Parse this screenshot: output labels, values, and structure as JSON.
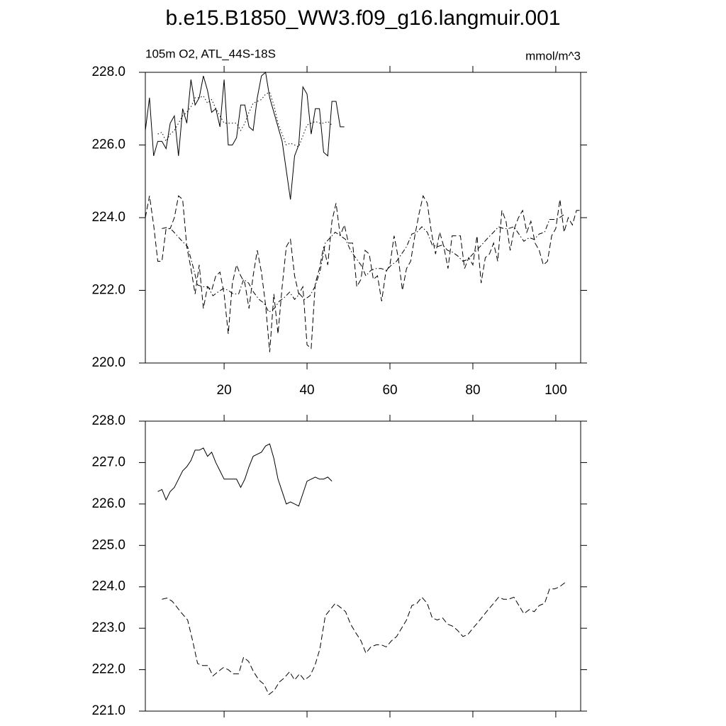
{
  "chart_data": [
    {
      "type": "line",
      "title": "b.e15.B1850_WW3.f09_g16.langmuir.001",
      "subtitle_left": "105m O2, ATL_44S-18S",
      "subtitle_right": "mmol/m^3",
      "xlim": [
        1,
        106
      ],
      "ylim": [
        220,
        228
      ],
      "xticks": [
        20,
        40,
        60,
        80,
        100
      ],
      "yticks": [
        {
          "value": 220,
          "label": "220.0"
        },
        {
          "value": 222,
          "label": "222.0"
        },
        {
          "value": 224,
          "label": "224.0"
        },
        {
          "value": 226,
          "label": "226.0"
        },
        {
          "value": 228,
          "label": "228.0"
        }
      ],
      "series": [
        {
          "color": "#000000",
          "line_style": "solid",
          "x": [
            1,
            2,
            3,
            4,
            5,
            6,
            7,
            8,
            9,
            10,
            11,
            12,
            13,
            14,
            15,
            16,
            17,
            18,
            19,
            20,
            21,
            22,
            23,
            24,
            25,
            26,
            27,
            28,
            29,
            30,
            31,
            32,
            33,
            34,
            35,
            36,
            37,
            38,
            39,
            40,
            41,
            42,
            43,
            44,
            45,
            46,
            47,
            48,
            49
          ],
          "values": [
            226.4,
            227.3,
            225.7,
            226.1,
            226.1,
            225.9,
            226.6,
            226.8,
            225.7,
            227.0,
            226.6,
            227.8,
            227.1,
            227.3,
            227.9,
            227.5,
            226.9,
            227.0,
            226.5,
            227.8,
            226.0,
            226.0,
            226.2,
            227.1,
            227.1,
            226.5,
            226.4,
            227.3,
            227.9,
            228.0,
            227.3,
            226.9,
            226.5,
            226.1,
            225.3,
            224.5,
            225.7,
            226.0,
            227.6,
            227.4,
            226.3,
            227.0,
            227.0,
            225.8,
            225.7,
            227.2,
            227.2,
            226.5,
            226.5
          ]
        },
        {
          "color": "#000000",
          "line_style": "dashed",
          "x": [
            1,
            2,
            3,
            4,
            5,
            6,
            7,
            8,
            9,
            10,
            11,
            12,
            13,
            14,
            15,
            16,
            17,
            18,
            19,
            20,
            21,
            22,
            23,
            24,
            25,
            26,
            27,
            28,
            29,
            30,
            31,
            32,
            33,
            34,
            35,
            36,
            37,
            38,
            39,
            40,
            41,
            42,
            43,
            44,
            45,
            46,
            47,
            48,
            49,
            50,
            51,
            52,
            53,
            54,
            55,
            56,
            57,
            58,
            59,
            60,
            61,
            62,
            63,
            64,
            65,
            66,
            67,
            68,
            69,
            70,
            71,
            72,
            73,
            74,
            75,
            76,
            77,
            78,
            79,
            80,
            81,
            82,
            83,
            84,
            85,
            86,
            87,
            88,
            89,
            90,
            91,
            92,
            93,
            94,
            95,
            96,
            97,
            98,
            99,
            100,
            101,
            102,
            103,
            104,
            105,
            106
          ],
          "values": [
            224.0,
            224.6,
            223.8,
            222.8,
            222.8,
            223.7,
            223.7,
            224.0,
            224.6,
            224.5,
            223.2,
            222.6,
            221.9,
            222.7,
            221.5,
            222.1,
            222.0,
            222.4,
            222.5,
            221.9,
            220.8,
            222.2,
            222.7,
            222.4,
            222.2,
            221.5,
            222.4,
            223.1,
            222.5,
            221.6,
            220.3,
            221.9,
            220.8,
            222.1,
            223.2,
            223.4,
            222.4,
            221.9,
            222.1,
            220.5,
            220.4,
            222.2,
            222.6,
            223.2,
            222.7,
            223.9,
            224.4,
            223.5,
            223.8,
            223.3,
            223.3,
            222.1,
            222.3,
            223.1,
            223.0,
            222.3,
            222.4,
            221.7,
            222.5,
            222.7,
            223.5,
            222.9,
            222.0,
            222.6,
            222.8,
            223.5,
            224.1,
            224.6,
            224.4,
            223.6,
            223.0,
            223.6,
            223.2,
            222.6,
            223.5,
            223.5,
            223.5,
            222.6,
            222.9,
            222.7,
            223.5,
            222.2,
            222.9,
            223.0,
            223.3,
            222.8,
            224.2,
            223.9,
            223.1,
            223.7,
            224.0,
            224.2,
            223.6,
            223.9,
            223.3,
            223.1,
            222.7,
            222.8,
            223.5,
            223.7,
            224.5,
            223.6,
            224.0,
            223.8,
            224.2,
            224.2
          ]
        },
        {
          "color": "#000000",
          "line_style": "dotted",
          "x": [
            4,
            5,
            6,
            7,
            8,
            9,
            10,
            11,
            12,
            13,
            14,
            15,
            16,
            17,
            18,
            19,
            20,
            21,
            22,
            23,
            24,
            25,
            26,
            27,
            28,
            29,
            30,
            31,
            32,
            33,
            34,
            35,
            36,
            37,
            38,
            39,
            40,
            41,
            42,
            43,
            44,
            45,
            46
          ],
          "values": [
            226.3,
            226.35,
            226.1,
            226.3,
            226.4,
            226.6,
            226.8,
            226.9,
            227.05,
            227.3,
            227.3,
            227.35,
            227.15,
            227.25,
            227.0,
            226.8,
            226.6,
            226.6,
            226.6,
            226.6,
            226.4,
            226.6,
            226.9,
            227.15,
            227.2,
            227.25,
            227.4,
            227.45,
            227.1,
            226.6,
            226.3,
            226.0,
            226.05,
            226.0,
            225.95,
            226.25,
            226.55,
            226.6,
            226.65,
            226.6,
            226.6,
            226.65,
            226.55
          ]
        },
        {
          "color": "#000000",
          "line_style": "dashdot",
          "x": [
            5.0,
            6.2,
            7.5,
            8.7,
            9.9,
            11.2,
            12.4,
            13.6,
            14.8,
            16.1,
            17.3,
            18.5,
            19.8,
            21.0,
            22.2,
            23.5,
            24.7,
            25.9,
            27.1,
            28.4,
            29.6,
            30.8,
            32.1,
            33.3,
            34.5,
            35.8,
            37.0,
            38.2,
            39.4,
            40.7,
            41.9,
            43.1,
            44.4,
            45.6,
            46.8,
            48.1,
            49.3,
            50.5,
            51.7,
            53.0,
            54.2,
            55.4,
            56.7,
            57.9,
            59.1,
            60.4,
            61.6,
            62.8,
            64.0,
            65.3,
            66.5,
            67.7,
            69.0,
            70.2,
            71.4,
            72.7,
            73.9,
            75.1,
            76.3,
            77.6,
            78.8,
            80.0,
            81.3,
            82.5,
            83.7,
            85.0,
            86.2,
            87.4,
            88.6,
            89.9,
            91.1,
            92.3,
            93.6,
            94.8,
            96.0,
            97.3,
            98.5,
            99.7,
            100.9,
            102.2
          ],
          "values": [
            223.7,
            223.73,
            223.65,
            223.5,
            223.35,
            223.2,
            222.7,
            222.15,
            222.1,
            222.1,
            221.85,
            221.95,
            222.05,
            222.0,
            221.9,
            221.9,
            222.3,
            222.2,
            221.95,
            221.75,
            221.65,
            221.4,
            221.5,
            221.7,
            221.8,
            221.95,
            221.75,
            221.9,
            221.75,
            221.85,
            222.1,
            222.5,
            223.3,
            223.45,
            223.6,
            223.5,
            223.4,
            223.1,
            222.9,
            222.7,
            222.4,
            222.55,
            222.6,
            222.6,
            222.55,
            222.7,
            222.8,
            223.0,
            223.2,
            223.55,
            223.6,
            223.75,
            223.6,
            223.25,
            223.2,
            223.25,
            223.1,
            223.05,
            222.95,
            222.8,
            222.85,
            223.0,
            223.15,
            223.3,
            223.45,
            223.6,
            223.75,
            223.7,
            223.7,
            223.75,
            223.55,
            223.35,
            223.45,
            223.4,
            223.55,
            223.6,
            223.95,
            223.95,
            224.0,
            224.1
          ]
        }
      ]
    },
    {
      "type": "line",
      "xlim": [
        1,
        106
      ],
      "ylim": [
        221,
        228
      ],
      "xticks": [
        20,
        40,
        60,
        80,
        100
      ],
      "yticks": [
        {
          "value": 221,
          "label": "221.0"
        },
        {
          "value": 222,
          "label": "222.0"
        },
        {
          "value": 223,
          "label": "223.0"
        },
        {
          "value": 224,
          "label": "224.0"
        },
        {
          "value": 225,
          "label": "225.0"
        },
        {
          "value": 226,
          "label": "226.0"
        },
        {
          "value": 227,
          "label": "227.0"
        },
        {
          "value": 228,
          "label": "228.0"
        }
      ],
      "series": [
        {
          "color": "#000000",
          "line_style": "solid",
          "x": [
            4,
            5,
            6,
            7,
            8,
            9,
            10,
            11,
            12,
            13,
            14,
            15,
            16,
            17,
            18,
            19,
            20,
            21,
            22,
            23,
            24,
            25,
            26,
            27,
            28,
            29,
            30,
            31,
            32,
            33,
            34,
            35,
            36,
            37,
            38,
            39,
            40,
            41,
            42,
            43,
            44,
            45,
            46
          ],
          "values": [
            226.3,
            226.35,
            226.1,
            226.3,
            226.4,
            226.6,
            226.8,
            226.9,
            227.05,
            227.3,
            227.3,
            227.35,
            227.15,
            227.25,
            227.0,
            226.8,
            226.6,
            226.6,
            226.6,
            226.6,
            226.4,
            226.6,
            226.9,
            227.15,
            227.2,
            227.25,
            227.4,
            227.45,
            227.1,
            226.6,
            226.3,
            226.0,
            226.05,
            226.0,
            225.95,
            226.25,
            226.55,
            226.6,
            226.65,
            226.6,
            226.6,
            226.65,
            226.55
          ]
        },
        {
          "color": "#000000",
          "line_style": "dashed",
          "x": [
            5.0,
            6.2,
            7.5,
            8.7,
            9.9,
            11.2,
            12.4,
            13.6,
            14.8,
            16.1,
            17.3,
            18.5,
            19.8,
            21.0,
            22.2,
            23.5,
            24.7,
            25.9,
            27.1,
            28.4,
            29.6,
            30.8,
            32.1,
            33.3,
            34.5,
            35.8,
            37.0,
            38.2,
            39.4,
            40.7,
            41.9,
            43.1,
            44.4,
            45.6,
            46.8,
            48.1,
            49.3,
            50.5,
            51.7,
            53.0,
            54.2,
            55.4,
            56.7,
            57.9,
            59.1,
            60.4,
            61.6,
            62.8,
            64.0,
            65.3,
            66.5,
            67.7,
            69.0,
            70.2,
            71.4,
            72.7,
            73.9,
            75.1,
            76.3,
            77.6,
            78.8,
            80.0,
            81.3,
            82.5,
            83.7,
            85.0,
            86.2,
            87.4,
            88.6,
            89.9,
            91.1,
            92.3,
            93.6,
            94.8,
            96.0,
            97.3,
            98.5,
            99.7,
            100.9,
            102.2
          ],
          "values": [
            223.7,
            223.73,
            223.65,
            223.5,
            223.35,
            223.2,
            222.7,
            222.15,
            222.1,
            222.1,
            221.85,
            221.95,
            222.05,
            222.0,
            221.9,
            221.9,
            222.3,
            222.2,
            221.95,
            221.75,
            221.65,
            221.4,
            221.5,
            221.7,
            221.8,
            221.95,
            221.75,
            221.9,
            221.75,
            221.85,
            222.1,
            222.5,
            223.3,
            223.45,
            223.6,
            223.5,
            223.4,
            223.1,
            222.9,
            222.7,
            222.4,
            222.55,
            222.6,
            222.6,
            222.55,
            222.7,
            222.8,
            223.0,
            223.2,
            223.55,
            223.6,
            223.75,
            223.6,
            223.25,
            223.2,
            223.25,
            223.1,
            223.05,
            222.95,
            222.8,
            222.85,
            223.0,
            223.15,
            223.3,
            223.45,
            223.6,
            223.75,
            223.7,
            223.7,
            223.75,
            223.55,
            223.35,
            223.45,
            223.4,
            223.55,
            223.6,
            223.95,
            223.95,
            224.0,
            224.1
          ]
        }
      ]
    }
  ]
}
